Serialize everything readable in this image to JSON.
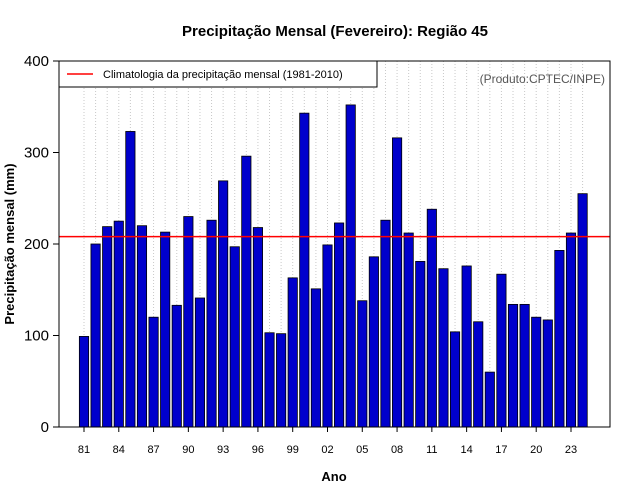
{
  "chart_data": {
    "type": "bar",
    "title": "Precipitação Mensal (Fevereiro): Região 45",
    "xlabel": "Ano",
    "ylabel": "Precipitação mensal (mm)",
    "ylim": [
      0,
      400
    ],
    "yticks": [
      0,
      100,
      200,
      300,
      400
    ],
    "categories": [
      "81",
      "82",
      "83",
      "84",
      "85",
      "86",
      "87",
      "88",
      "89",
      "90",
      "91",
      "92",
      "93",
      "94",
      "95",
      "96",
      "97",
      "98",
      "99",
      "00",
      "01",
      "02",
      "03",
      "04",
      "05",
      "06",
      "07",
      "08",
      "09",
      "10",
      "11",
      "12",
      "13",
      "14",
      "15",
      "16",
      "17",
      "18",
      "19",
      "20",
      "21",
      "22",
      "23",
      "24"
    ],
    "xtick_labels": [
      "81",
      "84",
      "87",
      "90",
      "93",
      "96",
      "99",
      "02",
      "05",
      "08",
      "11",
      "14",
      "17",
      "20",
      "23"
    ],
    "values": [
      99,
      200,
      219,
      225,
      323,
      220,
      120,
      213,
      133,
      230,
      141,
      226,
      269,
      197,
      296,
      218,
      103,
      102,
      163,
      343,
      151,
      199,
      223,
      352,
      138,
      186,
      226,
      316,
      212,
      181,
      238,
      173,
      104,
      176,
      115,
      60,
      167,
      134,
      134,
      120,
      117,
      193,
      212,
      255
    ],
    "climatology": 208,
    "legend": {
      "label": "Climatologia da precipitação mensal (1981-2010)",
      "position": "top-left",
      "line_color": "#ff0000"
    },
    "annotation": "(Produto:CPTEC/INPE)",
    "grid": "vertical-dotted",
    "bar_color": "#0000cc",
    "line_color": "#ff0000"
  }
}
